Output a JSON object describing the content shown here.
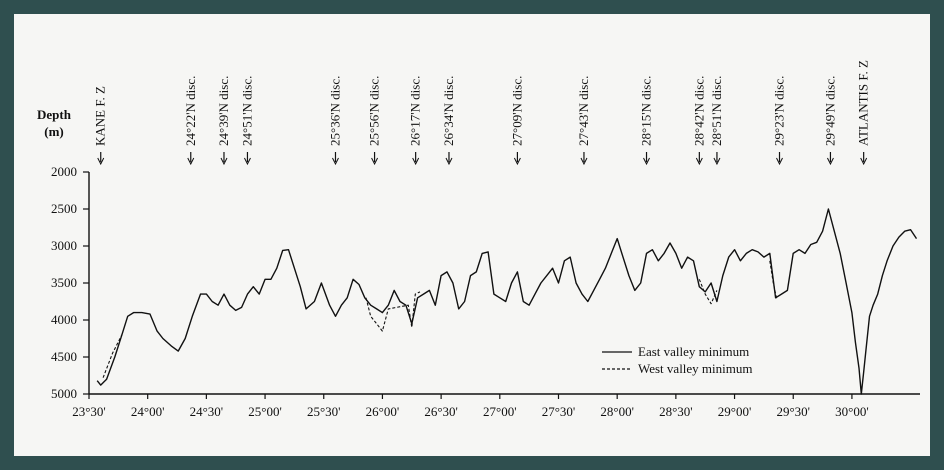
{
  "chart_data": {
    "type": "line",
    "ylabel": "Depth",
    "yunit": "(m)",
    "xlabel": "",
    "yticks": [
      "2000",
      "2500",
      "3000",
      "3500",
      "4000",
      "4500",
      "5000"
    ],
    "ylim": [
      2000,
      5000
    ],
    "y_inverted": true,
    "xticks": [
      "23°30'",
      "24°00'",
      "24°30'",
      "25°00'",
      "25°30'",
      "26°00'",
      "26°30'",
      "27°00'",
      "27°30'",
      "28°00'",
      "28°30'",
      "29°00'",
      "29°30'",
      "30°00'"
    ],
    "xlim": [
      23.5,
      30.58
    ],
    "features": [
      {
        "label": "KANE F. Z",
        "lat": 23.6
      },
      {
        "label": "24°22'N disc.",
        "lat": 24.367
      },
      {
        "label": "24°39'N disc.",
        "lat": 24.65
      },
      {
        "label": "24°51'N disc.",
        "lat": 24.85
      },
      {
        "label": "25°36'N disc.",
        "lat": 25.6
      },
      {
        "label": "25°56'N disc.",
        "lat": 25.933
      },
      {
        "label": "26°17'N disc.",
        "lat": 26.283
      },
      {
        "label": "26°34'N disc.",
        "lat": 26.567
      },
      {
        "label": "27°09'N disc.",
        "lat": 27.15
      },
      {
        "label": "27°43'N disc.",
        "lat": 27.717
      },
      {
        "label": "28°15'N disc.",
        "lat": 28.25
      },
      {
        "label": "28°42'N disc.",
        "lat": 28.7
      },
      {
        "label": "28°51'N disc.",
        "lat": 28.85
      },
      {
        "label": "29°23'N disc.",
        "lat": 29.383
      },
      {
        "label": "29°49'N disc.",
        "lat": 29.817
      },
      {
        "label": "ATLANTIS F. Z",
        "lat": 30.1
      }
    ],
    "legend_position": "bottom-right",
    "series": [
      {
        "name": "East valley minimum",
        "style": "solid",
        "points": [
          [
            23.57,
            4820
          ],
          [
            23.6,
            4880
          ],
          [
            23.65,
            4800
          ],
          [
            23.72,
            4500
          ],
          [
            23.78,
            4200
          ],
          [
            23.83,
            3950
          ],
          [
            23.88,
            3900
          ],
          [
            23.95,
            3900
          ],
          [
            24.02,
            3920
          ],
          [
            24.08,
            4150
          ],
          [
            24.13,
            4250
          ],
          [
            24.2,
            4350
          ],
          [
            24.26,
            4420
          ],
          [
            24.32,
            4250
          ],
          [
            24.38,
            3950
          ],
          [
            24.45,
            3650
          ],
          [
            24.5,
            3650
          ],
          [
            24.55,
            3750
          ],
          [
            24.6,
            3800
          ],
          [
            24.65,
            3650
          ],
          [
            24.7,
            3800
          ],
          [
            24.75,
            3870
          ],
          [
            24.8,
            3830
          ],
          [
            24.85,
            3650
          ],
          [
            24.9,
            3550
          ],
          [
            24.95,
            3650
          ],
          [
            25.0,
            3450
          ],
          [
            25.05,
            3450
          ],
          [
            25.1,
            3300
          ],
          [
            25.15,
            3060
          ],
          [
            25.2,
            3050
          ],
          [
            25.25,
            3300
          ],
          [
            25.3,
            3550
          ],
          [
            25.35,
            3850
          ],
          [
            25.42,
            3750
          ],
          [
            25.48,
            3500
          ],
          [
            25.55,
            3800
          ],
          [
            25.6,
            3950
          ],
          [
            25.65,
            3800
          ],
          [
            25.7,
            3700
          ],
          [
            25.75,
            3450
          ],
          [
            25.8,
            3520
          ],
          [
            25.85,
            3700
          ],
          [
            25.9,
            3800
          ],
          [
            25.95,
            3850
          ],
          [
            26.0,
            3900
          ],
          [
            26.05,
            3800
          ],
          [
            26.1,
            3600
          ],
          [
            26.15,
            3750
          ],
          [
            26.2,
            3800
          ],
          [
            26.25,
            4050
          ],
          [
            26.3,
            3700
          ],
          [
            26.35,
            3650
          ],
          [
            26.4,
            3600
          ],
          [
            26.45,
            3800
          ],
          [
            26.5,
            3400
          ],
          [
            26.55,
            3350
          ],
          [
            26.6,
            3500
          ],
          [
            26.65,
            3850
          ],
          [
            26.7,
            3750
          ],
          [
            26.75,
            3400
          ],
          [
            26.8,
            3350
          ],
          [
            26.85,
            3100
          ],
          [
            26.9,
            3080
          ],
          [
            26.95,
            3650
          ],
          [
            27.0,
            3700
          ],
          [
            27.05,
            3750
          ],
          [
            27.1,
            3500
          ],
          [
            27.15,
            3350
          ],
          [
            27.2,
            3750
          ],
          [
            27.25,
            3800
          ],
          [
            27.3,
            3650
          ],
          [
            27.35,
            3500
          ],
          [
            27.4,
            3400
          ],
          [
            27.45,
            3300
          ],
          [
            27.5,
            3500
          ],
          [
            27.55,
            3200
          ],
          [
            27.6,
            3150
          ],
          [
            27.65,
            3500
          ],
          [
            27.7,
            3650
          ],
          [
            27.75,
            3750
          ],
          [
            27.8,
            3600
          ],
          [
            27.85,
            3450
          ],
          [
            27.9,
            3300
          ],
          [
            27.95,
            3100
          ],
          [
            28.0,
            2900
          ],
          [
            28.05,
            3150
          ],
          [
            28.1,
            3400
          ],
          [
            28.15,
            3600
          ],
          [
            28.2,
            3500
          ],
          [
            28.25,
            3100
          ],
          [
            28.3,
            3050
          ],
          [
            28.35,
            3200
          ],
          [
            28.4,
            3100
          ],
          [
            28.45,
            2960
          ],
          [
            28.5,
            3100
          ],
          [
            28.55,
            3300
          ],
          [
            28.6,
            3150
          ],
          [
            28.65,
            3200
          ],
          [
            28.7,
            3550
          ],
          [
            28.75,
            3620
          ],
          [
            28.8,
            3500
          ],
          [
            28.85,
            3750
          ],
          [
            28.9,
            3400
          ],
          [
            28.95,
            3150
          ],
          [
            29.0,
            3050
          ],
          [
            29.05,
            3200
          ],
          [
            29.1,
            3100
          ],
          [
            29.15,
            3050
          ],
          [
            29.2,
            3080
          ],
          [
            29.25,
            3150
          ],
          [
            29.3,
            3100
          ],
          [
            29.35,
            3700
          ],
          [
            29.4,
            3650
          ],
          [
            29.45,
            3600
          ],
          [
            29.5,
            3100
          ],
          [
            29.55,
            3050
          ],
          [
            29.6,
            3100
          ],
          [
            29.65,
            2980
          ],
          [
            29.7,
            2950
          ],
          [
            29.75,
            2800
          ],
          [
            29.8,
            2500
          ],
          [
            29.85,
            2800
          ],
          [
            29.9,
            3100
          ],
          [
            29.95,
            3500
          ],
          [
            30.0,
            3900
          ],
          [
            30.03,
            4300
          ],
          [
            30.06,
            4650
          ],
          [
            30.08,
            5000
          ],
          [
            30.1,
            4700
          ],
          [
            30.12,
            4400
          ],
          [
            30.15,
            3950
          ],
          [
            30.18,
            3800
          ],
          [
            30.22,
            3650
          ],
          [
            30.26,
            3400
          ],
          [
            30.3,
            3200
          ],
          [
            30.35,
            3000
          ],
          [
            30.4,
            2880
          ],
          [
            30.45,
            2800
          ],
          [
            30.5,
            2780
          ],
          [
            30.55,
            2900
          ]
        ]
      },
      {
        "name": "West valley minimum",
        "style": "dashed",
        "points": [
          [
            23.62,
            4780
          ],
          [
            23.7,
            4450
          ],
          [
            23.78,
            4200
          ],
          [
            25.86,
            3700
          ],
          [
            25.9,
            3950
          ],
          [
            25.95,
            4050
          ],
          [
            26.0,
            4150
          ],
          [
            26.05,
            3850
          ],
          [
            26.22,
            3800
          ],
          [
            26.25,
            4100
          ],
          [
            26.28,
            3650
          ],
          [
            26.32,
            3620
          ],
          [
            28.7,
            3450
          ],
          [
            28.75,
            3650
          ],
          [
            28.8,
            3780
          ],
          [
            28.85,
            3600
          ],
          [
            29.3,
            3200
          ],
          [
            29.33,
            3500
          ],
          [
            29.36,
            3720
          ]
        ]
      }
    ]
  }
}
